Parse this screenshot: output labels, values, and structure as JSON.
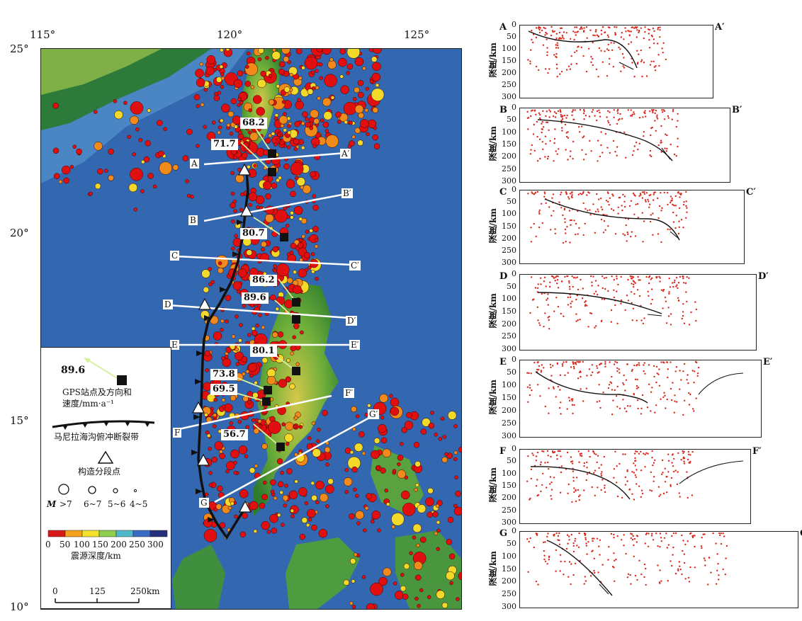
{
  "map": {
    "lon_labels": [
      "115°",
      "120°",
      "125°"
    ],
    "lat_labels": [
      "25°",
      "20°",
      "15°",
      "10°"
    ],
    "profiles": [
      {
        "start": "A",
        "end": "A′"
      },
      {
        "start": "B",
        "end": "B′"
      },
      {
        "start": "C",
        "end": "C′"
      },
      {
        "start": "D",
        "end": "D′"
      },
      {
        "start": "E",
        "end": "E′"
      },
      {
        "start": "F",
        "end": "F′"
      },
      {
        "start": "G",
        "end": "G′"
      }
    ],
    "gps_velocities": [
      "68.2",
      "71.7",
      "80.7",
      "86.2",
      "89.6",
      "80.1",
      "73.8",
      "69.5",
      "56.7"
    ],
    "colors": {
      "ocean": "#2a5fa8",
      "ocean_shallow": "#4f86c6",
      "land_low": "#2e7d2e",
      "land_high": "#c9c442",
      "quake_shallow": "#e01010",
      "trench": "#111111",
      "profile_line": "#ffffff",
      "gps_arrow": "#d6f0a0"
    }
  },
  "legend": {
    "gps_example_value": "89.6",
    "gps_label_line1": "GPS站点及方向和",
    "gps_label_line2": "速度/mm·a⁻¹",
    "trench_label": "马尼拉海沟俯冲断裂带",
    "segment_label": "构造分段点",
    "magnitude_prefix": "M",
    "magnitude_classes": [
      ">7",
      "6~7",
      "5~6",
      "4~5"
    ],
    "depth_ticks": [
      "0",
      "50",
      "100",
      "150",
      "200",
      "250",
      "300"
    ],
    "depth_colors": [
      "#d7191c",
      "#f4a11d",
      "#f3e22a",
      "#8fce4f",
      "#4fb7c9",
      "#3a6bc4",
      "#26307a"
    ],
    "depth_title": "震源深度/km",
    "scalebar_ticks": [
      "0",
      "125",
      "250km"
    ]
  },
  "sections": {
    "ylabel": "深度/km",
    "depth_ticks": [
      "0",
      "50",
      "100",
      "150",
      "200",
      "250",
      "300"
    ],
    "panels": [
      {
        "start": "A",
        "end": "A′"
      },
      {
        "start": "B",
        "end": "B′"
      },
      {
        "start": "C",
        "end": "C′"
      },
      {
        "start": "D",
        "end": "D′"
      },
      {
        "start": "E",
        "end": "E′"
      },
      {
        "start": "F",
        "end": "F′"
      },
      {
        "start": "G",
        "end": "G′"
      }
    ]
  }
}
